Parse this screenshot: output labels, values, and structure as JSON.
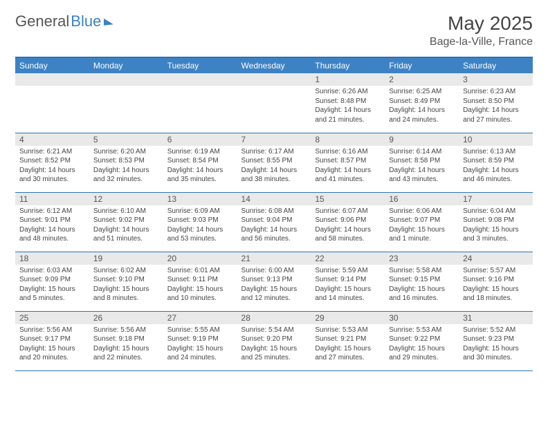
{
  "logo": {
    "part1": "General",
    "part2": "Blue"
  },
  "title": "May 2025",
  "location": "Bage-la-Ville, France",
  "weekdays": [
    "Sunday",
    "Monday",
    "Tuesday",
    "Wednesday",
    "Thursday",
    "Friday",
    "Saturday"
  ],
  "colors": {
    "header_bg": "#3d82c4",
    "header_text": "#ffffff",
    "row_border": "#2b72b8",
    "daynum_bg": "#e9e9e9",
    "text": "#444444"
  },
  "layout": {
    "start_weekday_index": 4,
    "days_in_month": 31,
    "cols": 7,
    "rows": 5
  },
  "days": [
    {
      "n": 1,
      "sunrise": "6:26 AM",
      "sunset": "8:48 PM",
      "daylight": "14 hours and 21 minutes."
    },
    {
      "n": 2,
      "sunrise": "6:25 AM",
      "sunset": "8:49 PM",
      "daylight": "14 hours and 24 minutes."
    },
    {
      "n": 3,
      "sunrise": "6:23 AM",
      "sunset": "8:50 PM",
      "daylight": "14 hours and 27 minutes."
    },
    {
      "n": 4,
      "sunrise": "6:21 AM",
      "sunset": "8:52 PM",
      "daylight": "14 hours and 30 minutes."
    },
    {
      "n": 5,
      "sunrise": "6:20 AM",
      "sunset": "8:53 PM",
      "daylight": "14 hours and 32 minutes."
    },
    {
      "n": 6,
      "sunrise": "6:19 AM",
      "sunset": "8:54 PM",
      "daylight": "14 hours and 35 minutes."
    },
    {
      "n": 7,
      "sunrise": "6:17 AM",
      "sunset": "8:55 PM",
      "daylight": "14 hours and 38 minutes."
    },
    {
      "n": 8,
      "sunrise": "6:16 AM",
      "sunset": "8:57 PM",
      "daylight": "14 hours and 41 minutes."
    },
    {
      "n": 9,
      "sunrise": "6:14 AM",
      "sunset": "8:58 PM",
      "daylight": "14 hours and 43 minutes."
    },
    {
      "n": 10,
      "sunrise": "6:13 AM",
      "sunset": "8:59 PM",
      "daylight": "14 hours and 46 minutes."
    },
    {
      "n": 11,
      "sunrise": "6:12 AM",
      "sunset": "9:01 PM",
      "daylight": "14 hours and 48 minutes."
    },
    {
      "n": 12,
      "sunrise": "6:10 AM",
      "sunset": "9:02 PM",
      "daylight": "14 hours and 51 minutes."
    },
    {
      "n": 13,
      "sunrise": "6:09 AM",
      "sunset": "9:03 PM",
      "daylight": "14 hours and 53 minutes."
    },
    {
      "n": 14,
      "sunrise": "6:08 AM",
      "sunset": "9:04 PM",
      "daylight": "14 hours and 56 minutes."
    },
    {
      "n": 15,
      "sunrise": "6:07 AM",
      "sunset": "9:06 PM",
      "daylight": "14 hours and 58 minutes."
    },
    {
      "n": 16,
      "sunrise": "6:06 AM",
      "sunset": "9:07 PM",
      "daylight": "15 hours and 1 minute."
    },
    {
      "n": 17,
      "sunrise": "6:04 AM",
      "sunset": "9:08 PM",
      "daylight": "15 hours and 3 minutes."
    },
    {
      "n": 18,
      "sunrise": "6:03 AM",
      "sunset": "9:09 PM",
      "daylight": "15 hours and 5 minutes."
    },
    {
      "n": 19,
      "sunrise": "6:02 AM",
      "sunset": "9:10 PM",
      "daylight": "15 hours and 8 minutes."
    },
    {
      "n": 20,
      "sunrise": "6:01 AM",
      "sunset": "9:11 PM",
      "daylight": "15 hours and 10 minutes."
    },
    {
      "n": 21,
      "sunrise": "6:00 AM",
      "sunset": "9:13 PM",
      "daylight": "15 hours and 12 minutes."
    },
    {
      "n": 22,
      "sunrise": "5:59 AM",
      "sunset": "9:14 PM",
      "daylight": "15 hours and 14 minutes."
    },
    {
      "n": 23,
      "sunrise": "5:58 AM",
      "sunset": "9:15 PM",
      "daylight": "15 hours and 16 minutes."
    },
    {
      "n": 24,
      "sunrise": "5:57 AM",
      "sunset": "9:16 PM",
      "daylight": "15 hours and 18 minutes."
    },
    {
      "n": 25,
      "sunrise": "5:56 AM",
      "sunset": "9:17 PM",
      "daylight": "15 hours and 20 minutes."
    },
    {
      "n": 26,
      "sunrise": "5:56 AM",
      "sunset": "9:18 PM",
      "daylight": "15 hours and 22 minutes."
    },
    {
      "n": 27,
      "sunrise": "5:55 AM",
      "sunset": "9:19 PM",
      "daylight": "15 hours and 24 minutes."
    },
    {
      "n": 28,
      "sunrise": "5:54 AM",
      "sunset": "9:20 PM",
      "daylight": "15 hours and 25 minutes."
    },
    {
      "n": 29,
      "sunrise": "5:53 AM",
      "sunset": "9:21 PM",
      "daylight": "15 hours and 27 minutes."
    },
    {
      "n": 30,
      "sunrise": "5:53 AM",
      "sunset": "9:22 PM",
      "daylight": "15 hours and 29 minutes."
    },
    {
      "n": 31,
      "sunrise": "5:52 AM",
      "sunset": "9:23 PM",
      "daylight": "15 hours and 30 minutes."
    }
  ],
  "labels": {
    "sunrise": "Sunrise:",
    "sunset": "Sunset:",
    "daylight": "Daylight:"
  }
}
